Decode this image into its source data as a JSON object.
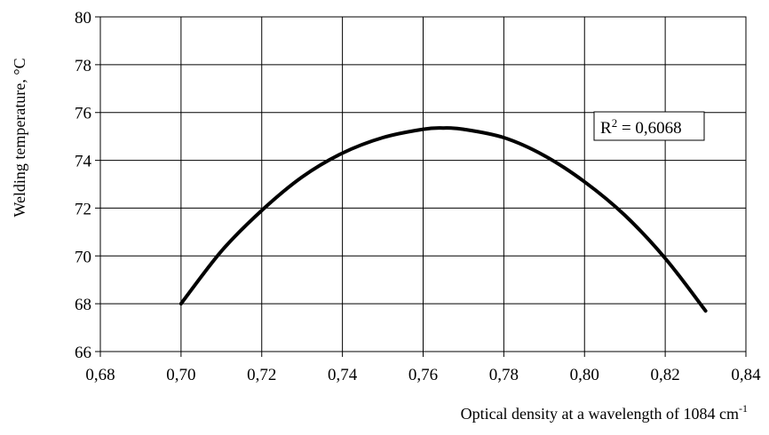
{
  "chart_data": {
    "type": "line",
    "xlabel": "Optical density at a wavelength of 1084 cm",
    "xlabel_superscript": "-1",
    "ylabel": "Welding temperature, ",
    "ylabel_unit": "°C",
    "xlim": [
      0.68,
      0.84
    ],
    "ylim": [
      66,
      80
    ],
    "grid": true,
    "x_ticks": [
      0.68,
      0.7,
      0.72,
      0.74,
      0.76,
      0.78,
      0.8,
      0.82,
      0.84
    ],
    "x_tick_labels": [
      "0,68",
      "0,70",
      "0,72",
      "0,74",
      "0,76",
      "0,78",
      "0,80",
      "0,82",
      "0,84"
    ],
    "y_ticks": [
      66,
      68,
      70,
      72,
      74,
      76,
      78,
      80
    ],
    "y_tick_labels": [
      "66",
      "68",
      "70",
      "72",
      "74",
      "76",
      "78",
      "80"
    ],
    "series": [
      {
        "x": [
          0.7,
          0.71,
          0.72,
          0.73,
          0.74,
          0.75,
          0.76,
          0.765,
          0.77,
          0.78,
          0.79,
          0.8,
          0.81,
          0.82,
          0.83
        ],
        "y": [
          68.0,
          70.2,
          71.9,
          73.3,
          74.3,
          74.95,
          75.3,
          75.35,
          75.3,
          74.95,
          74.2,
          73.1,
          71.7,
          69.9,
          67.7
        ]
      }
    ],
    "annotation": {
      "text_base": "R",
      "text_sup": "2",
      "text_rest": " = 0,6068",
      "placement": "upper-right"
    }
  }
}
